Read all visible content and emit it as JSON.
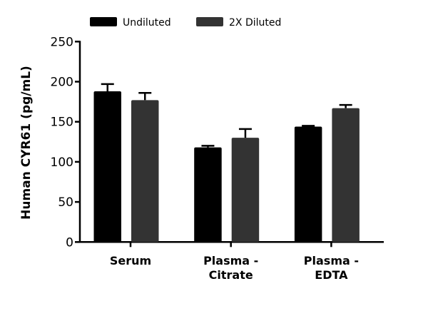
{
  "chart_data": {
    "type": "bar",
    "title": "",
    "xlabel": "",
    "ylabel": "Human CYR61 (pg/mL)",
    "ylim": [
      0,
      250
    ],
    "yticks": [
      0,
      50,
      100,
      150,
      200,
      250
    ],
    "categories": [
      [
        "Serum"
      ],
      [
        "Plasma -",
        "Citrate"
      ],
      [
        "Plasma -",
        "EDTA"
      ]
    ],
    "legend_position": "top",
    "grid": false,
    "error_bars": true,
    "series": [
      {
        "name": "Undiluted",
        "color": "#000000",
        "values": [
          188,
          118,
          144
        ],
        "error_upper": [
          197,
          120,
          145
        ]
      },
      {
        "name": "2X Diluted",
        "color": "#333333",
        "values": [
          177,
          130,
          167
        ],
        "error_upper": [
          186,
          141,
          171
        ]
      }
    ]
  }
}
